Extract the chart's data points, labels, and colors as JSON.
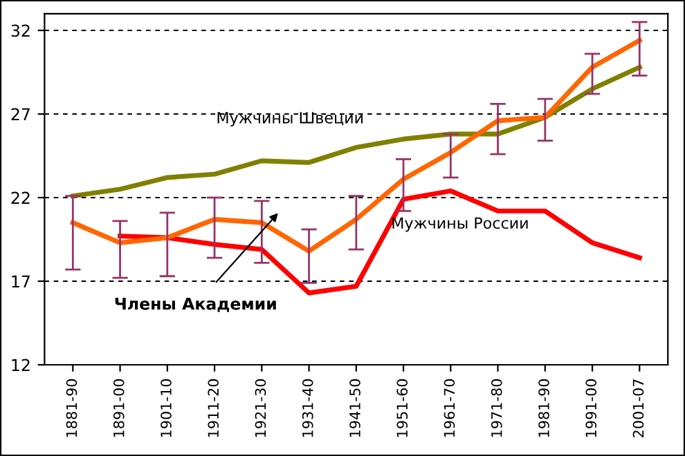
{
  "chart_data": {
    "type": "line",
    "categories": [
      "1881-90",
      "1891-00",
      "1901-10",
      "1911-20",
      "1921-30",
      "1931-40",
      "1941-50",
      "1951-60",
      "1961-70",
      "1971-80",
      "1981-90",
      "1991-00",
      "2001-07"
    ],
    "series": [
      {
        "name": "Мужчины Швеции",
        "color": "#808000",
        "values": [
          22.1,
          22.5,
          23.2,
          23.4,
          24.2,
          24.1,
          25.0,
          25.5,
          25.8,
          25.8,
          26.8,
          28.5,
          29.8
        ]
      },
      {
        "name": "Мужчины России",
        "color": "#ff0000",
        "values": [
          null,
          19.7,
          19.6,
          19.2,
          18.9,
          16.3,
          16.7,
          21.9,
          22.4,
          21.2,
          21.2,
          19.3,
          18.4
        ]
      },
      {
        "name": "Члены Академии",
        "color": "#ff6600",
        "values": [
          20.5,
          19.3,
          19.6,
          20.7,
          20.5,
          18.8,
          20.7,
          23.1,
          24.7,
          26.6,
          26.8,
          29.8,
          31.4
        ],
        "errors": [
          [
            17.7,
            22.1
          ],
          [
            17.2,
            20.6
          ],
          [
            17.3,
            21.1
          ],
          [
            18.4,
            22.0
          ],
          [
            18.1,
            21.8
          ],
          [
            16.9,
            20.1
          ],
          [
            18.9,
            22.1
          ],
          [
            21.2,
            24.3
          ],
          [
            23.2,
            25.8
          ],
          [
            24.6,
            27.6
          ],
          [
            25.4,
            27.9
          ],
          [
            28.2,
            30.6
          ],
          [
            29.3,
            32.5
          ]
        ]
      }
    ],
    "ylim": [
      12,
      33
    ],
    "yticks": [
      12,
      17,
      22,
      27,
      32
    ],
    "grid": "y",
    "legend": false,
    "marker": "none",
    "line_style": "solid"
  }
}
